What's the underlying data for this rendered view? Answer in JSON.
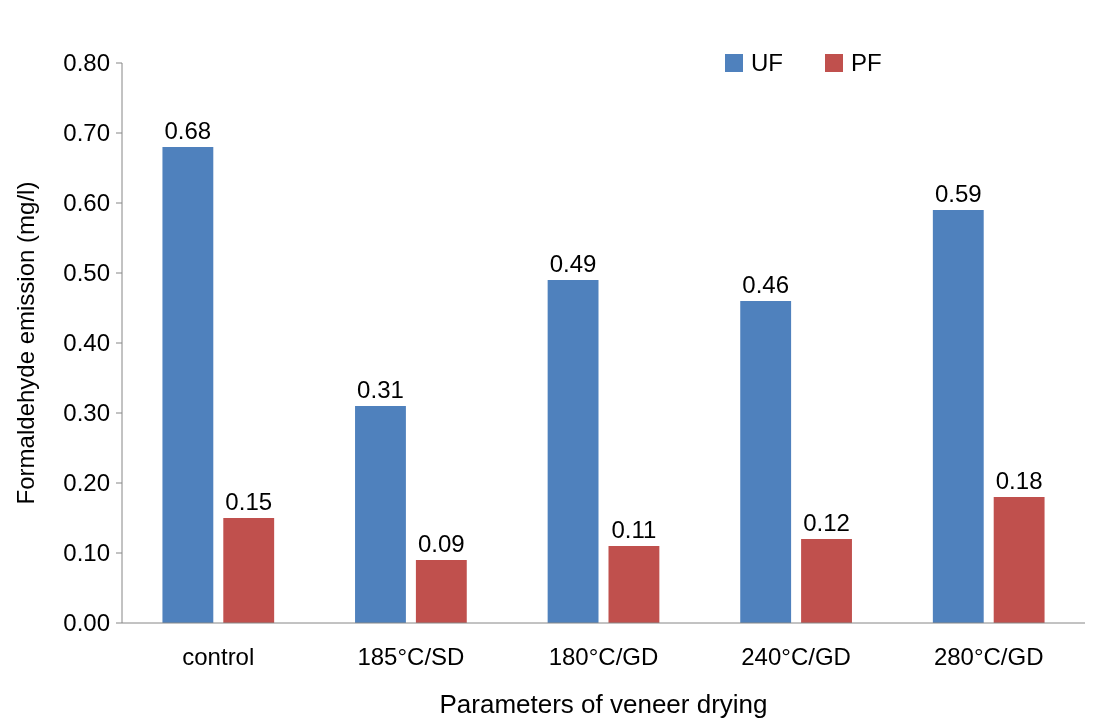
{
  "chart_data": {
    "type": "bar",
    "xlabel": "Parameters of veneer drying",
    "ylabel": "Formaldehyde  emission  (mg/l)",
    "categories": [
      "control",
      "185°C/SD",
      "180°C/GD",
      "240°C/GD",
      "280°C/GD"
    ],
    "series": [
      {
        "name": "UF",
        "color": "#4f81bd",
        "values": [
          0.68,
          0.31,
          0.49,
          0.46,
          0.59
        ]
      },
      {
        "name": "PF",
        "color": "#c0504d",
        "values": [
          0.15,
          0.09,
          0.11,
          0.12,
          0.18
        ]
      }
    ],
    "ylim": [
      0,
      0.8
    ],
    "yticks": [
      {
        "value": 0,
        "label": "0.00"
      },
      {
        "value": 0.1,
        "label": "0.10"
      },
      {
        "value": 0.2,
        "label": "0.20"
      },
      {
        "value": 0.3,
        "label": "0.30"
      },
      {
        "value": 0.4,
        "label": "0.40"
      },
      {
        "value": 0.5,
        "label": "0.50"
      },
      {
        "value": 0.6,
        "label": "0.60"
      },
      {
        "value": 0.7,
        "label": "0.70"
      },
      {
        "value": 0.8,
        "label": "0.80"
      }
    ],
    "data_labels": true,
    "grid": false,
    "legend": "top right"
  }
}
